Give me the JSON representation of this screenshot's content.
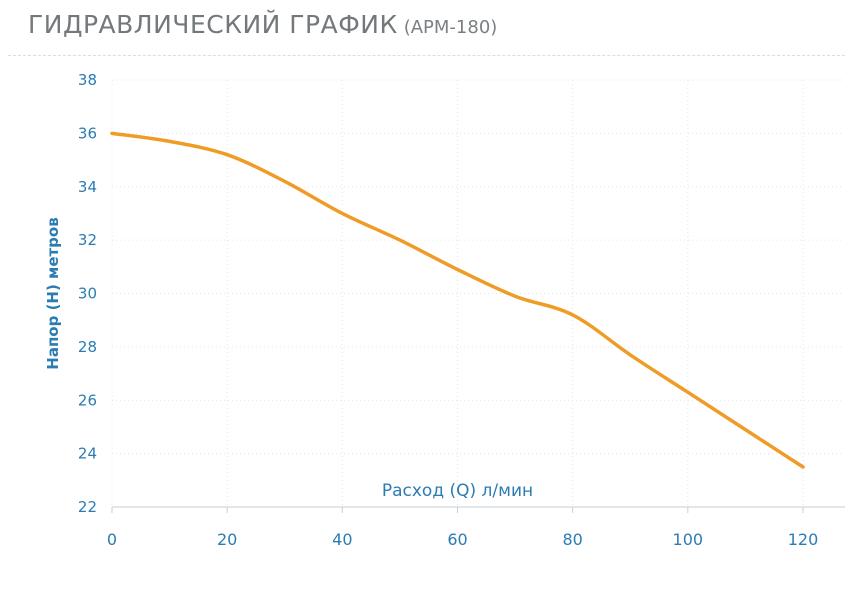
{
  "page": {
    "title_main": "ГИДРАВЛИЧЕСКИЙ ГРАФИК",
    "title_model": "(АРМ-180)"
  },
  "colors": {
    "title_text": "#73787b",
    "axis_text": "#2b7cb3",
    "grid_line": "#e2e6e9",
    "axis_line": "#c9cfd3",
    "curve": "#ef9c27",
    "divider": "#d9dee1"
  },
  "chart_data": {
    "type": "line",
    "title": "ГИДРАВЛИЧЕСКИЙ ГРАФИК (АРМ-180)",
    "series_name": "АРМ-180",
    "xlabel": "Расход (Q) л/мин",
    "ylabel": "Напор (H) метров",
    "x": [
      0,
      10,
      20,
      30,
      40,
      50,
      60,
      70,
      80,
      90,
      100,
      110,
      120
    ],
    "y": [
      36.0,
      35.7,
      35.2,
      34.2,
      33.0,
      32.0,
      30.9,
      29.9,
      29.2,
      27.7,
      26.3,
      24.9,
      23.5
    ],
    "xlim": [
      0,
      120
    ],
    "ylim": [
      22,
      38
    ],
    "x_ticks": [
      0,
      20,
      40,
      60,
      80,
      100,
      120
    ],
    "y_ticks": [
      22,
      24,
      26,
      28,
      30,
      32,
      34,
      36,
      38
    ],
    "grid": true,
    "legend": false,
    "line_color": "#ef9c27"
  }
}
